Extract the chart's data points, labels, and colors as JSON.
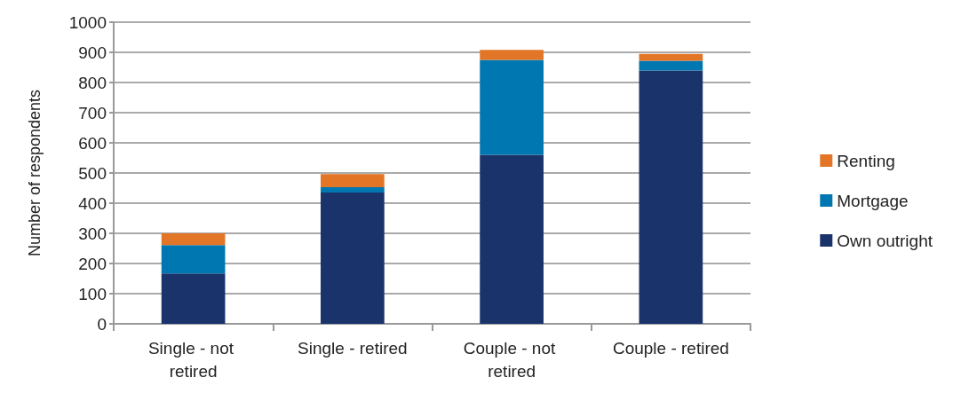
{
  "chart_data": {
    "type": "bar",
    "stacked": true,
    "ylabel": "Number of respondents",
    "categories": [
      "Single - not retired",
      "Single - retired",
      "Couple - not retired",
      "Couple - retired"
    ],
    "series": [
      {
        "name": "Own outright",
        "color": "#1a336b",
        "values": [
          167,
          435,
          560,
          840
        ]
      },
      {
        "name": "Mortgage",
        "color": "#0077b0",
        "values": [
          94,
          18,
          315,
          32
        ]
      },
      {
        "name": "Renting",
        "color": "#e37526",
        "values": [
          39,
          43,
          33,
          23
        ]
      }
    ],
    "ylim": [
      0,
      1000
    ],
    "yticks": [
      0,
      100,
      200,
      300,
      400,
      500,
      600,
      700,
      800,
      900,
      1000
    ],
    "grid": "y",
    "legend": "right"
  }
}
